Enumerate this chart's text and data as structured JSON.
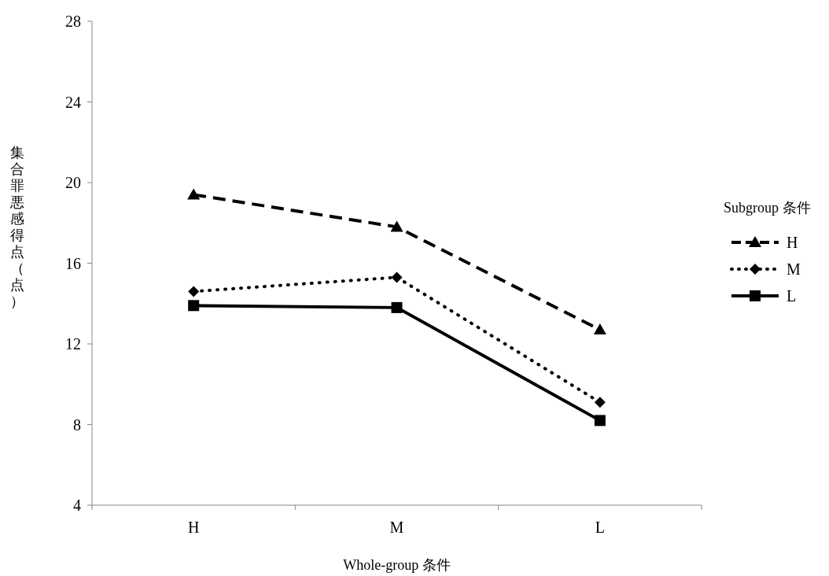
{
  "chart_data": {
    "type": "line",
    "xlabel": "Whole-group 条件",
    "ylabel": "集合罪悪感得点（点）",
    "legend_title": "Subgroup 条件",
    "legend": "right",
    "categories": [
      "H",
      "M",
      "L"
    ],
    "ylim": [
      4,
      28
    ],
    "yticks": [
      4,
      8,
      12,
      16,
      20,
      24,
      28
    ],
    "series": [
      {
        "name": "H",
        "color": "#000000",
        "marker": "triangle",
        "line_style": "dashed",
        "values": [
          19.4,
          17.8,
          12.7
        ]
      },
      {
        "name": "M",
        "color": "#000000",
        "marker": "diamond",
        "line_style": "dotted",
        "values": [
          14.6,
          15.3,
          9.1
        ]
      },
      {
        "name": "L",
        "color": "#000000",
        "marker": "square",
        "line_style": "solid",
        "values": [
          13.9,
          13.8,
          8.2
        ]
      }
    ]
  }
}
